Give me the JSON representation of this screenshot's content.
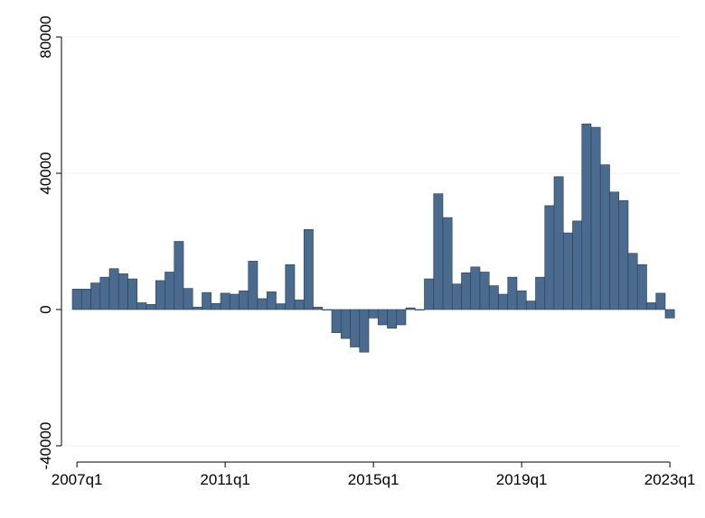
{
  "chart_data": {
    "type": "bar",
    "title": "",
    "xlabel": "",
    "ylabel": "",
    "x_ticks": [
      "2007q1",
      "2011q1",
      "2015q1",
      "2019q1",
      "2023q1"
    ],
    "y_ticks": [
      {
        "value": -40000,
        "label": "-40000"
      },
      {
        "value": 0,
        "label": "0"
      },
      {
        "value": 40000,
        "label": "40000"
      },
      {
        "value": 80000,
        "label": "80000"
      }
    ],
    "ylim": [
      -40000,
      80000
    ],
    "grid": true,
    "legend": "none",
    "x": [
      "2007q1",
      "2007q2",
      "2007q3",
      "2007q4",
      "2008q1",
      "2008q2",
      "2008q3",
      "2008q4",
      "2009q1",
      "2009q2",
      "2009q3",
      "2009q4",
      "2010q1",
      "2010q2",
      "2010q3",
      "2010q4",
      "2011q1",
      "2011q2",
      "2011q3",
      "2011q4",
      "2012q1",
      "2012q2",
      "2012q3",
      "2012q4",
      "2013q1",
      "2013q2",
      "2013q3",
      "2013q4",
      "2014q1",
      "2014q2",
      "2014q3",
      "2014q4",
      "2015q1",
      "2015q2",
      "2015q3",
      "2015q4",
      "2016q1",
      "2016q2",
      "2016q3",
      "2016q4",
      "2017q1",
      "2017q2",
      "2017q3",
      "2017q4",
      "2018q1",
      "2018q2",
      "2018q3",
      "2018q4",
      "2019q1",
      "2019q2",
      "2019q3",
      "2019q4",
      "2020q1",
      "2020q2",
      "2020q3",
      "2020q4",
      "2021q1",
      "2021q2",
      "2021q3",
      "2021q4",
      "2022q1",
      "2022q2",
      "2022q3",
      "2022q4",
      "2023q1"
    ],
    "values": [
      6000,
      6000,
      7800,
      9500,
      12000,
      10500,
      9000,
      2000,
      1500,
      8500,
      11000,
      20000,
      6200,
      700,
      5000,
      1800,
      4800,
      4500,
      5500,
      14200,
      3200,
      5200,
      1700,
      13200,
      2800,
      23500,
      700,
      0,
      -6800,
      -8500,
      -11000,
      -12500,
      -2500,
      -4500,
      -5500,
      -4500,
      500,
      0,
      9000,
      34000,
      27000,
      7500,
      10800,
      12500,
      11000,
      7000,
      4500,
      9500,
      5500,
      2500,
      9500,
      30500,
      39000,
      22500,
      26000,
      54500,
      53500,
      42500,
      34500,
      32000,
      16500,
      13200,
      2000,
      4800,
      -2500
    ],
    "colors": {
      "bar_fill": "#4a6a8e",
      "bar_stroke": "#2a3f58",
      "grid": "#eef2f6",
      "axis": "#000000",
      "background": "#ffffff"
    }
  }
}
